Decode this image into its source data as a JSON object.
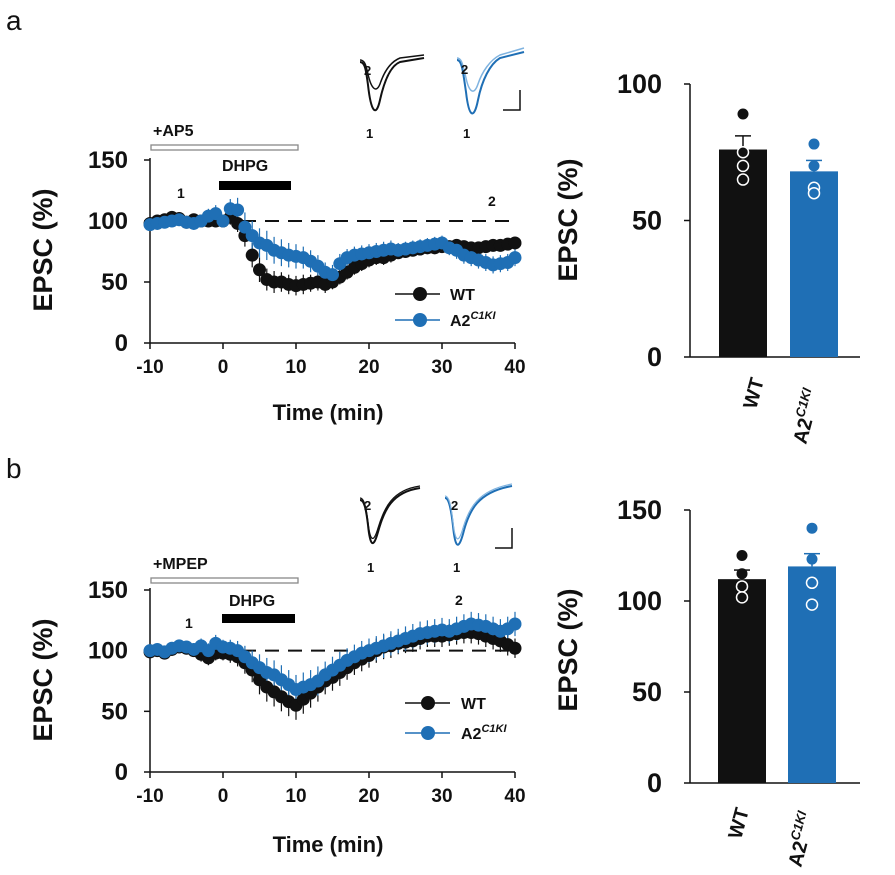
{
  "colors": {
    "wt": "#111111",
    "ki": "#1f6fb5",
    "ki_light": "#7fb3e0",
    "bar_gray": "#aaaaaa"
  },
  "chart_data": [
    {
      "panel": "a",
      "type": "scatter",
      "title": "",
      "xlabel": "Time (min)",
      "ylabel": "EPSC (%)",
      "xlim": [
        -10,
        40
      ],
      "ylim": [
        0,
        150
      ],
      "xticks": [
        "-10",
        "0",
        "10",
        "20",
        "30",
        "40"
      ],
      "yticks": [
        "0",
        "50",
        "100",
        "150"
      ],
      "drug_bar": "+AP5",
      "agonist_bar": "DHPG",
      "agonist_range": [
        0,
        10
      ],
      "baseline": 100,
      "timepoint_labels": [
        {
          "label": "1",
          "x": -5
        },
        {
          "label": "2",
          "x": 37.5
        }
      ],
      "legend": [
        "WT",
        "A2",
        "C1KI"
      ],
      "series": [
        {
          "name": "WT",
          "x": [
            -10,
            -9,
            -8,
            -7,
            -6,
            -5,
            -4,
            -3,
            -2,
            -1,
            0,
            1,
            2,
            3,
            4,
            5,
            6,
            7,
            8,
            9,
            10,
            11,
            12,
            13,
            14,
            15,
            16,
            17,
            18,
            19,
            20,
            21,
            22,
            23,
            24,
            25,
            26,
            27,
            28,
            29,
            30,
            31,
            32,
            33,
            34,
            35,
            36,
            37,
            38,
            39,
            40
          ],
          "y": [
            98,
            100,
            101,
            103,
            102,
            99,
            101,
            100,
            100,
            100,
            100,
            103,
            98,
            88,
            72,
            60,
            52,
            50,
            50,
            48,
            47,
            48,
            49,
            50,
            48,
            50,
            54,
            58,
            62,
            65,
            68,
            70,
            70,
            72,
            74,
            75,
            76,
            77,
            78,
            78,
            79,
            79,
            80,
            79,
            78,
            78,
            79,
            80,
            80,
            81,
            82
          ],
          "err": [
            4,
            4,
            4,
            5,
            5,
            4,
            4,
            4,
            4,
            4,
            4,
            6,
            7,
            9,
            10,
            10,
            9,
            9,
            8,
            8,
            8,
            8,
            7,
            7,
            7,
            6,
            6,
            6,
            6,
            6,
            6,
            6,
            6,
            6,
            5,
            5,
            5,
            5,
            5,
            5,
            5,
            5,
            5,
            5,
            5,
            5,
            5,
            5,
            5,
            5,
            5
          ]
        },
        {
          "name": "A2C1KI",
          "x": [
            -10,
            -9,
            -8,
            -7,
            -6,
            -5,
            -4,
            -3,
            -2,
            -1,
            0,
            1,
            2,
            3,
            4,
            5,
            6,
            7,
            8,
            9,
            10,
            11,
            12,
            13,
            14,
            15,
            16,
            17,
            18,
            19,
            20,
            21,
            22,
            23,
            24,
            25,
            26,
            27,
            28,
            29,
            30,
            31,
            32,
            33,
            34,
            35,
            36,
            37,
            38,
            39,
            40
          ],
          "y": [
            97,
            98,
            99,
            100,
            101,
            99,
            98,
            100,
            104,
            106,
            100,
            110,
            109,
            95,
            88,
            82,
            80,
            76,
            74,
            72,
            71,
            70,
            67,
            63,
            58,
            56,
            65,
            70,
            72,
            73,
            74,
            75,
            76,
            77,
            76,
            77,
            78,
            79,
            80,
            81,
            82,
            78,
            76,
            72,
            70,
            68,
            66,
            64,
            65,
            66,
            70
          ],
          "err": [
            4,
            4,
            4,
            4,
            5,
            4,
            4,
            5,
            6,
            7,
            5,
            8,
            10,
            12,
            12,
            12,
            12,
            11,
            11,
            10,
            10,
            9,
            9,
            9,
            8,
            8,
            8,
            7,
            7,
            7,
            7,
            7,
            7,
            7,
            6,
            6,
            6,
            6,
            6,
            6,
            6,
            6,
            7,
            7,
            7,
            7,
            7,
            7,
            7,
            7,
            7
          ]
        }
      ]
    },
    {
      "panel": "a",
      "type": "bar",
      "title": "",
      "xlabel": "",
      "ylabel": "EPSC (%)",
      "ylim": [
        0,
        100
      ],
      "yticks": [
        "0",
        "50",
        "100"
      ],
      "categories": [
        "WT",
        "A2C1KI"
      ],
      "category_labels": [
        {
          "main": "WT",
          "sup": ""
        },
        {
          "main": "A2",
          "sup": "C1KI"
        }
      ],
      "values": [
        76,
        68
      ],
      "errors": [
        5,
        4
      ],
      "points": [
        [
          89,
          75,
          70,
          65
        ],
        [
          78,
          70,
          62,
          60
        ]
      ]
    },
    {
      "panel": "b",
      "type": "scatter",
      "title": "",
      "xlabel": "Time (min)",
      "ylabel": "EPSC (%)",
      "xlim": [
        -10,
        40
      ],
      "ylim": [
        0,
        150
      ],
      "xticks": [
        "-10",
        "0",
        "10",
        "20",
        "30",
        "40"
      ],
      "yticks": [
        "0",
        "50",
        "100",
        "150"
      ],
      "drug_bar": "+MPEP",
      "agonist_bar": "DHPG",
      "agonist_range": [
        0,
        10
      ],
      "baseline": 100,
      "timepoint_labels": [
        {
          "label": "1",
          "x": -5
        },
        {
          "label": "2",
          "x": 34
        }
      ],
      "legend": [
        "WT",
        "A2",
        "C1KI"
      ],
      "series": [
        {
          "name": "WT",
          "x": [
            -10,
            -9,
            -8,
            -7,
            -6,
            -5,
            -4,
            -3,
            -2,
            -1,
            0,
            1,
            2,
            3,
            4,
            5,
            6,
            7,
            8,
            9,
            10,
            11,
            12,
            13,
            14,
            15,
            16,
            17,
            18,
            19,
            20,
            21,
            22,
            23,
            24,
            25,
            26,
            27,
            28,
            29,
            30,
            31,
            32,
            33,
            34,
            35,
            36,
            37,
            38,
            39,
            40
          ],
          "y": [
            99,
            100,
            98,
            101,
            103,
            102,
            100,
            97,
            94,
            98,
            98,
            97,
            95,
            90,
            84,
            76,
            70,
            66,
            62,
            58,
            55,
            60,
            65,
            70,
            75,
            78,
            82,
            86,
            90,
            93,
            96,
            100,
            103,
            104,
            106,
            107,
            108,
            110,
            112,
            112,
            112,
            113,
            114,
            115,
            115,
            114,
            112,
            110,
            108,
            105,
            102
          ],
          "err": [
            4,
            5,
            5,
            5,
            5,
            5,
            5,
            6,
            6,
            6,
            6,
            7,
            8,
            9,
            10,
            12,
            12,
            12,
            12,
            12,
            12,
            12,
            12,
            12,
            11,
            11,
            11,
            10,
            10,
            10,
            10,
            10,
            10,
            10,
            9,
            9,
            9,
            9,
            9,
            9,
            9,
            9,
            9,
            9,
            9,
            9,
            9,
            9,
            9,
            9,
            8
          ]
        },
        {
          "name": "A2C1KI",
          "x": [
            -10,
            -9,
            -8,
            -7,
            -6,
            -5,
            -4,
            -3,
            -2,
            -1,
            0,
            1,
            2,
            3,
            4,
            5,
            6,
            7,
            8,
            9,
            10,
            11,
            12,
            13,
            14,
            15,
            16,
            17,
            18,
            19,
            20,
            21,
            22,
            23,
            24,
            25,
            26,
            27,
            28,
            29,
            30,
            31,
            32,
            33,
            34,
            35,
            36,
            37,
            38,
            39,
            40
          ],
          "y": [
            100,
            101,
            99,
            102,
            104,
            103,
            101,
            104,
            100,
            106,
            103,
            102,
            100,
            95,
            90,
            86,
            82,
            80,
            76,
            72,
            68,
            70,
            72,
            75,
            80,
            84,
            88,
            92,
            95,
            98,
            100,
            102,
            104,
            106,
            108,
            110,
            112,
            114,
            115,
            116,
            117,
            116,
            118,
            120,
            122,
            121,
            120,
            118,
            116,
            118,
            122
          ],
          "err": [
            4,
            5,
            5,
            5,
            5,
            5,
            5,
            6,
            6,
            7,
            6,
            7,
            8,
            9,
            10,
            11,
            12,
            12,
            12,
            12,
            12,
            12,
            12,
            12,
            11,
            11,
            11,
            10,
            10,
            10,
            10,
            10,
            10,
            10,
            10,
            10,
            10,
            10,
            10,
            10,
            10,
            10,
            10,
            10,
            10,
            10,
            10,
            10,
            10,
            10,
            10
          ]
        }
      ]
    },
    {
      "panel": "b",
      "type": "bar",
      "title": "",
      "xlabel": "",
      "ylabel": "EPSC (%)",
      "ylim": [
        0,
        150
      ],
      "yticks": [
        "0",
        "50",
        "100",
        "150"
      ],
      "categories": [
        "WT",
        "A2C1KI"
      ],
      "category_labels": [
        {
          "main": "WT",
          "sup": ""
        },
        {
          "main": "A2",
          "sup": "C1KI"
        }
      ],
      "values": [
        112,
        119
      ],
      "errors": [
        5,
        7
      ],
      "points": [
        [
          125,
          115,
          108,
          102
        ],
        [
          140,
          123,
          110,
          98
        ]
      ]
    }
  ],
  "panel_labels": [
    "a",
    "b"
  ],
  "trace_labels": [
    "1",
    "2"
  ]
}
